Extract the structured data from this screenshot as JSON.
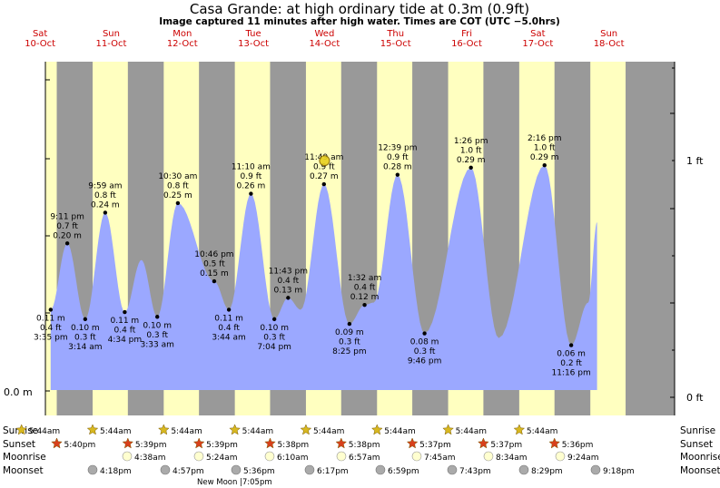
{
  "chart_data": {
    "type": "area",
    "title": "Casa Grande: at high  ordinary tide at 0.3m (0.9ft)",
    "subtitle": "Image captured 11 minutes after high water. Times are COT (UTC −5.0hrs)",
    "days": [
      {
        "dow": "Sat",
        "date": "10-Oct"
      },
      {
        "dow": "Sun",
        "date": "11-Oct"
      },
      {
        "dow": "Mon",
        "date": "12-Oct"
      },
      {
        "dow": "Tue",
        "date": "13-Oct"
      },
      {
        "dow": "Wed",
        "date": "14-Oct"
      },
      {
        "dow": "Thu",
        "date": "15-Oct"
      },
      {
        "dow": "Fri",
        "date": "16-Oct"
      },
      {
        "dow": "Sat",
        "date": "17-Oct"
      },
      {
        "dow": "Sun",
        "date": "18-Oct"
      }
    ],
    "yaxis_left": {
      "label": "0.0 m",
      "value": 0
    },
    "yaxis_right": [
      {
        "label": "0 ft",
        "value": 0
      },
      {
        "label": "1 ft",
        "value": 1
      }
    ],
    "ylim_ft": [
      -0.03,
      1.42
    ],
    "tides": [
      {
        "day": 0,
        "hour": 15.58,
        "m": "0.11 m",
        "ft": "0.4 ft",
        "time": "3:35 pm",
        "v": 0.37,
        "pos": "below"
      },
      {
        "day": 0,
        "hour": 21.18,
        "m": "0.20 m",
        "ft": "0.7 ft",
        "time": "9:11 pm",
        "v": 0.65,
        "pos": "above"
      },
      {
        "day": 1,
        "hour": 3.23,
        "m": "0.10 m",
        "ft": "0.3 ft",
        "time": "3:14 am",
        "v": 0.33,
        "pos": "below"
      },
      {
        "day": 1,
        "hour": 9.98,
        "m": "0.24 m",
        "ft": "0.8 ft",
        "time": "9:59 am",
        "v": 0.78,
        "pos": "above"
      },
      {
        "day": 1,
        "hour": 16.57,
        "m": "0.11 m",
        "ft": "0.4 ft",
        "time": "4:34 pm",
        "v": 0.36,
        "pos": "below"
      },
      {
        "day": 1,
        "hour": 22.2,
        "v": 0.58
      },
      {
        "day": 2,
        "hour": 3.55,
        "m": "0.10 m",
        "ft": "0.3 ft",
        "time": "3:33 am",
        "v": 0.34,
        "pos": "below"
      },
      {
        "day": 2,
        "hour": 10.5,
        "m": "0.25 m",
        "ft": "0.8 ft",
        "time": "10:30 am",
        "v": 0.82,
        "pos": "above"
      },
      {
        "day": 2,
        "hour": 22.77,
        "m": "0.15 m",
        "ft": "0.5 ft",
        "time": "10:46 pm",
        "v": 0.49,
        "pos": "above"
      },
      {
        "day": 3,
        "hour": 3.73,
        "m": "0.11 m",
        "ft": "0.4 ft",
        "time": "3:44 am",
        "v": 0.37,
        "pos": "below"
      },
      {
        "day": 3,
        "hour": 11.17,
        "m": "0.26 m",
        "ft": "0.9 ft",
        "time": "11:10 am",
        "v": 0.86,
        "pos": "above"
      },
      {
        "day": 3,
        "hour": 19.07,
        "m": "0.10 m",
        "ft": "0.3 ft",
        "time": "7:04 pm",
        "v": 0.33,
        "pos": "below"
      },
      {
        "day": 3,
        "hour": 23.72,
        "m": "0.13 m",
        "ft": "0.4 ft",
        "time": "11:43 pm",
        "v": 0.42,
        "pos": "above"
      },
      {
        "day": 4,
        "hour": 4.0,
        "v": 0.37
      },
      {
        "day": 4,
        "hour": 11.82,
        "m": "0.27 m",
        "ft": "0.9 ft",
        "time": "11:49 am",
        "v": 0.9,
        "pos": "above"
      },
      {
        "day": 4,
        "hour": 20.42,
        "m": "0.09 m",
        "ft": "0.3 ft",
        "time": "8:25 pm",
        "v": 0.31,
        "pos": "below"
      },
      {
        "day": 5,
        "hour": 1.53,
        "m": "0.12 m",
        "ft": "0.4 ft",
        "time": "1:32 am",
        "v": 0.39,
        "pos": "above"
      },
      {
        "day": 5,
        "hour": 4.6,
        "v": 0.4
      },
      {
        "day": 5,
        "hour": 12.65,
        "m": "0.28 m",
        "ft": "0.9 ft",
        "time": "12:39 pm",
        "v": 0.94,
        "pos": "above"
      },
      {
        "day": 5,
        "hour": 21.77,
        "m": "0.08 m",
        "ft": "0.3 ft",
        "time": "9:46 pm",
        "v": 0.27,
        "pos": "below"
      },
      {
        "day": 6,
        "hour": 13.43,
        "m": "0.29 m",
        "ft": "1.0 ft",
        "time": "1:26 pm",
        "v": 0.97,
        "pos": "above"
      },
      {
        "day": 6,
        "hour": 22.8,
        "v": 0.25
      },
      {
        "day": 7,
        "hour": 14.27,
        "m": "0.29 m",
        "ft": "1.0 ft",
        "time": "2:16 pm",
        "v": 0.98,
        "pos": "above"
      },
      {
        "day": 7,
        "hour": 23.27,
        "m": "0.06 m",
        "ft": "0.2 ft",
        "time": "11:16 pm",
        "v": 0.22,
        "pos": "below"
      },
      {
        "day": 8,
        "hour": 5.0,
        "v": 0.4
      },
      {
        "day": 8,
        "hour": 8.0,
        "v": 0.74
      }
    ],
    "current": {
      "day": 4,
      "hour": 12.0,
      "v": 0.9
    },
    "sunrise": [
      "5:44am",
      "5:44am",
      "5:44am",
      "5:44am",
      "5:44am",
      "5:44am",
      "5:44am",
      "5:44am"
    ],
    "sunrise_hour": 5.73,
    "sunset": [
      "5:40pm",
      "5:39pm",
      "5:39pm",
      "5:38pm",
      "5:38pm",
      "5:37pm",
      "5:37pm",
      "5:36pm"
    ],
    "sunset_hour": 17.63,
    "moonrise": [
      "4:38am",
      "5:24am",
      "6:10am",
      "6:57am",
      "7:45am",
      "8:34am",
      "9:24am"
    ],
    "moonset": [
      "4:18pm",
      "4:57pm",
      "5:36pm",
      "6:17pm",
      "6:59pm",
      "7:43pm",
      "8:29pm",
      "9:18pm"
    ],
    "astro_labels": {
      "sunrise": "Sunrise",
      "sunset": "Sunset",
      "moonrise": "Moonrise",
      "moonset": "Moonset"
    },
    "moon_phase": {
      "label": "New Moon",
      "time": "|7:05pm"
    },
    "colors": {
      "day": "#ffffc0",
      "night": "#999999",
      "water": "#9ba8ff",
      "sun": "#d8b820",
      "sunset": "#d8401c",
      "moonrise": "#ffffd0",
      "moonset": "#aaaaaa",
      "daylabel": "#cc0000"
    }
  }
}
